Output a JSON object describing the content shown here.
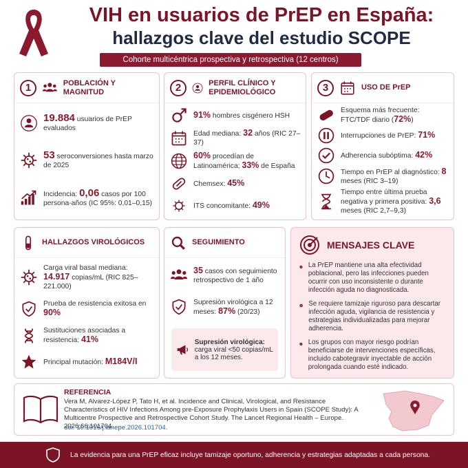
{
  "header": {
    "title_line1": "VIH en usuarios de PrEP en España:",
    "title_line2": "hallazgos clave del estudio SCOPE",
    "subtitle": "Cohorte multicéntrica prospectiva y retrospectiva (12 centros)"
  },
  "panels": [
    {
      "number": "1",
      "title": "POBLACIÓN Y MAGNITUD",
      "items": [
        [
          {
            "em": "19.884"
          },
          " usuarios de PrEP evaluados"
        ],
        [
          {
            "em": "53"
          },
          " seroconversiones hasta marzo de 2025"
        ],
        [
          "Incidencia: ",
          {
            "em": "0,06"
          },
          " casos por 100 persona-años (IC 95%: 0,01–0,15)"
        ]
      ]
    },
    {
      "number": "2",
      "title": "PERFIL CLÍNICO Y EPIDEMIOLÓGICO",
      "items": [
        [
          {
            "em": "91%"
          },
          " hombres cisgénero HSH"
        ],
        [
          "Edad mediana: ",
          {
            "em": "32"
          },
          " años (RIC 27–37)"
        ],
        [
          {
            "em": "60%"
          },
          " procedían de Latinoamérica; ",
          {
            "em": "33%"
          },
          " de España"
        ],
        [
          "Chemsex: ",
          {
            "em": "45%"
          }
        ],
        [
          "ITS concomitante: ",
          {
            "em": "49%"
          }
        ]
      ]
    },
    {
      "number": "3",
      "title": "USO DE PrEP",
      "items": [
        [
          "Esquema más frecuente: FTC/TDF diario (",
          {
            "em": "72%"
          },
          ")"
        ],
        [
          "Interrupciones de PrEP: ",
          {
            "em": "71%"
          }
        ],
        [
          "Adherencia subóptima: ",
          {
            "em": "42%"
          }
        ],
        [
          "Tiempo en PrEP al diagnóstico: ",
          {
            "em": "8"
          },
          " meses (RIC 3–19)"
        ],
        [
          "Tiempo entre última prueba negativa y primera positiva: ",
          {
            "em": "3,6"
          },
          " meses (RIC 2,7–9,3)"
        ]
      ]
    },
    {
      "title": "HALLAZGOS VIROLÓGICOS",
      "items": [
        [
          "Carga viral basal mediana: ",
          {
            "em": "14.917"
          },
          " copias/mL (RIC 825–221.000)"
        ],
        [
          "Prueba de resistencia exitosa en ",
          {
            "em": "90%"
          }
        ],
        [
          "Sustituciones asociadas a resistencia: ",
          {
            "em": "41%"
          }
        ],
        [
          "Principal mutación: ",
          {
            "em": "M184V/I"
          }
        ]
      ]
    },
    {
      "title": "SEGUIMIENTO",
      "items": [
        [
          {
            "em": "35"
          },
          " casos con seguimiento retrospectivo de 1 año"
        ],
        [
          "Supresión virológica a 12 meses: ",
          {
            "em": "87%"
          },
          " (20/23)"
        ]
      ],
      "note": {
        "title": "Supresión virológica:",
        "text": "carga viral <50 copias/mL a los 12 meses."
      }
    }
  ],
  "key_messages": {
    "title": "MENSAJES CLAVE",
    "items": [
      "La PrEP mantiene una alta efectividad poblacional, pero las infecciones pueden ocurrir con uso inconsistente o durante infección aguda no diagnosticada.",
      "Se requiere tamizaje riguroso para descartar infección aguda, vigilancia de resistencia y estrategias individualizadas para mejorar adherencia.",
      "Los grupos con mayor riesgo podrían beneficiarse de intervenciones específicas, incluido cabotegravir inyectable de acción prolongada cuando esté indicado."
    ]
  },
  "reference": {
    "title": "REFERENCIA",
    "text": "Vera M, Alvarez-López P, Tato H, et al. Incidence and Clinical, Virological, and Resistance Characteristics of HIV Infections Among pre-Exposure Prophylaxis Users in Spain (SCOPE Study): A Multicentre Prospective and Retrospective Cohort Study. The Lancet Regional Health – Europe. 2026;66:101704.",
    "doi": "doi: 10.1016/j.lanepe.2026.101704."
  },
  "footer": {
    "text": "La evidencia para una PrEP eficaz incluye tamizaje oportuno, adherencia y estrategias adaptadas a cada persona."
  }
}
